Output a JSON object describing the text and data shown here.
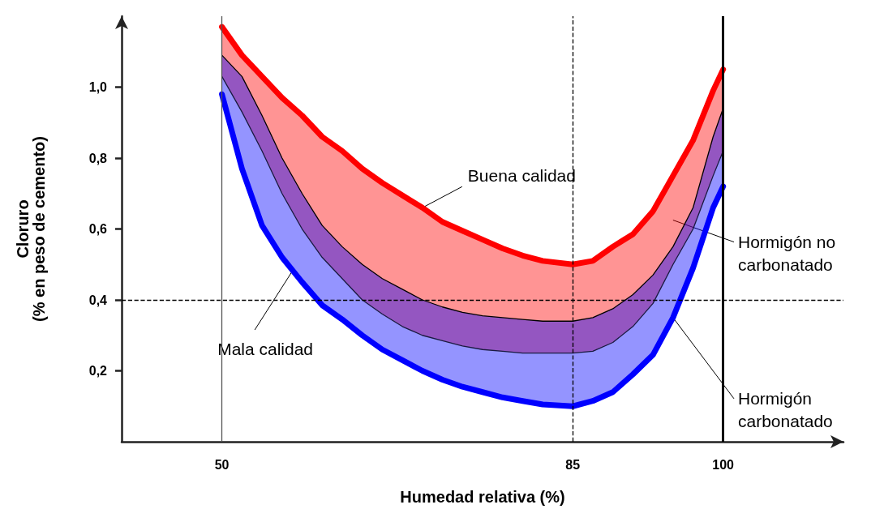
{
  "chart_data": {
    "type": "line",
    "xlabel": "Humedad relativa (%)",
    "ylabel": "Cloruro\n(% en peso de cemento)",
    "x": [
      50,
      52,
      54,
      56,
      58,
      60,
      62,
      64,
      66,
      68,
      70,
      72,
      74,
      76,
      78,
      80,
      82,
      85,
      87,
      89,
      91,
      93,
      95,
      97,
      99,
      100
    ],
    "series": [
      {
        "name": "Hormigón no\ncarbonatado",
        "color": "#ff0000",
        "values": [
          1.17,
          1.09,
          1.03,
          0.97,
          0.92,
          0.86,
          0.82,
          0.77,
          0.73,
          0.695,
          0.66,
          0.62,
          0.595,
          0.57,
          0.545,
          0.525,
          0.51,
          0.5,
          0.51,
          0.55,
          0.585,
          0.65,
          0.75,
          0.85,
          0.99,
          1.05
        ],
        "lower": [
          1.03,
          0.93,
          0.82,
          0.7,
          0.6,
          0.52,
          0.46,
          0.4,
          0.36,
          0.325,
          0.3,
          0.285,
          0.27,
          0.26,
          0.255,
          0.25,
          0.25,
          0.25,
          0.255,
          0.28,
          0.325,
          0.39,
          0.5,
          0.6,
          0.75,
          0.82
        ],
        "upper": [
          1.17,
          1.09,
          1.03,
          0.97,
          0.92,
          0.86,
          0.82,
          0.77,
          0.73,
          0.695,
          0.66,
          0.62,
          0.595,
          0.57,
          0.545,
          0.525,
          0.51,
          0.5,
          0.51,
          0.55,
          0.585,
          0.65,
          0.75,
          0.85,
          0.99,
          1.05
        ]
      },
      {
        "name": "Hormigón\ncarbonatado",
        "color": "#0000ff",
        "values": [
          0.98,
          0.77,
          0.61,
          0.52,
          0.45,
          0.385,
          0.345,
          0.3,
          0.26,
          0.23,
          0.2,
          0.175,
          0.155,
          0.14,
          0.125,
          0.115,
          0.105,
          0.1,
          0.115,
          0.14,
          0.19,
          0.245,
          0.35,
          0.49,
          0.66,
          0.72
        ],
        "lower": [
          0.98,
          0.77,
          0.61,
          0.52,
          0.45,
          0.385,
          0.345,
          0.3,
          0.26,
          0.23,
          0.2,
          0.175,
          0.155,
          0.14,
          0.125,
          0.115,
          0.105,
          0.1,
          0.115,
          0.14,
          0.19,
          0.245,
          0.35,
          0.49,
          0.66,
          0.72
        ],
        "upper": [
          1.09,
          1.03,
          0.92,
          0.8,
          0.7,
          0.61,
          0.55,
          0.5,
          0.46,
          0.43,
          0.4,
          0.38,
          0.365,
          0.355,
          0.35,
          0.345,
          0.34,
          0.34,
          0.35,
          0.375,
          0.415,
          0.47,
          0.55,
          0.66,
          0.86,
          0.94
        ]
      },
      {
        "color": "#1a1a40",
        "values": [
          1.03,
          0.93,
          0.82,
          0.7,
          0.6,
          0.52,
          0.46,
          0.4,
          0.36,
          0.325,
          0.3,
          0.285,
          0.27,
          0.26,
          0.255,
          0.25,
          0.25,
          0.25,
          0.255,
          0.28,
          0.325,
          0.39,
          0.5,
          0.6,
          0.75,
          0.82
        ]
      },
      {
        "color": "#000000",
        "values": [
          1.09,
          1.03,
          0.92,
          0.8,
          0.7,
          0.61,
          0.55,
          0.5,
          0.46,
          0.43,
          0.4,
          0.38,
          0.365,
          0.355,
          0.35,
          0.345,
          0.34,
          0.34,
          0.35,
          0.375,
          0.415,
          0.47,
          0.55,
          0.66,
          0.86,
          0.94
        ]
      }
    ],
    "annotations": [
      {
        "text": "Buena calidad",
        "x": 70,
        "y": 0.66
      },
      {
        "text": "Mala calidad",
        "x": 57,
        "y": 0.48
      }
    ],
    "ref_lines": [
      {
        "axis": "x",
        "value": 50,
        "color": "#555555",
        "line_style": "solid"
      },
      {
        "axis": "x",
        "value": 100,
        "color": "#000000",
        "line_style": "solid"
      },
      {
        "axis": "x",
        "value": 85,
        "color": "#000000",
        "line_style": "dashed"
      },
      {
        "axis": "y",
        "value": 0.4,
        "color": "#000000",
        "line_style": "dashed"
      }
    ],
    "xlim": [
      40,
      112
    ],
    "xticks": [
      50,
      85,
      100
    ],
    "ylim": [
      0,
      1.2
    ],
    "yticks": [
      {
        "value": 0.2,
        "label": "0,2"
      },
      {
        "value": 0.4,
        "label": "0,4"
      },
      {
        "value": 0.6,
        "label": "0,6"
      },
      {
        "value": 0.8,
        "label": "0,8"
      },
      {
        "value": 1.0,
        "label": "1,0"
      }
    ],
    "grid": false,
    "legend": false,
    "marker": "none",
    "line_style": "solid"
  }
}
